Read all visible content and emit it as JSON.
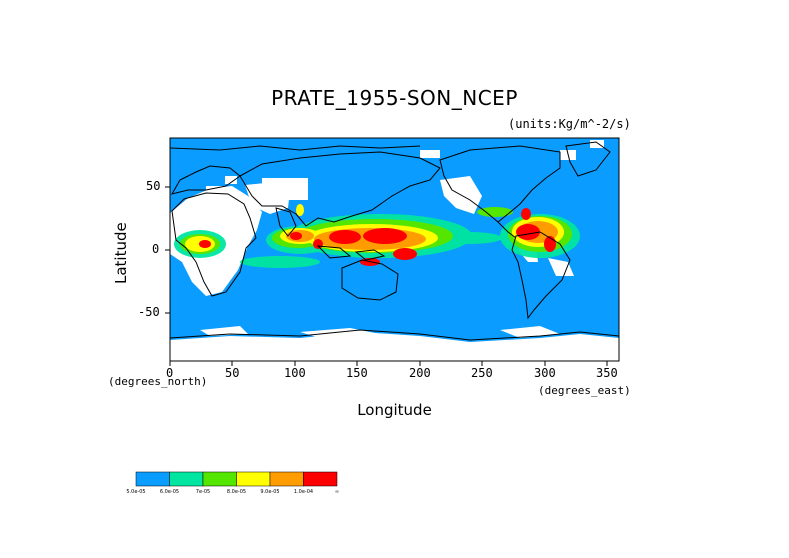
{
  "title": "PRATE_1955-SON_NCEP",
  "units": "(units:Kg/m^-2/s)",
  "axes": {
    "x_title": "Longitude",
    "y_title": "Latitude",
    "x_note": "(degrees_east)",
    "y_note": "(degrees_north)",
    "x_ticks": [
      "0",
      "50",
      "100",
      "150",
      "200",
      "250",
      "300",
      "350"
    ],
    "y_ticks": [
      "50",
      "0",
      "-50"
    ]
  },
  "colors": {
    "ocean": "#0a9cff",
    "missing": "#ffffff",
    "land_outline": "#000000"
  },
  "legend": {
    "colors": [
      "#0a9cff",
      "#00e6a0",
      "#55e600",
      "#ffff00",
      "#ff9c00",
      "#ff0000"
    ],
    "labels": [
      "5.0e-05",
      "6.0e-05",
      "7e-05",
      "8.0e-05",
      "9.0e-05",
      "1.0e-04",
      "∞"
    ]
  },
  "chart_data": {
    "type": "heatmap",
    "title": "PRATE_1955-SON_NCEP",
    "xlabel": "Longitude",
    "ylabel": "Latitude",
    "xlim": [
      0,
      360
    ],
    "ylim": [
      -90,
      90
    ],
    "x_ticks": [
      0,
      50,
      100,
      150,
      200,
      250,
      300,
      350
    ],
    "y_ticks": [
      50,
      0,
      -50
    ],
    "legend_thresholds": [
      5e-05,
      6e-05,
      7e-05,
      8e-05,
      9e-05,
      0.0001
    ]
  }
}
